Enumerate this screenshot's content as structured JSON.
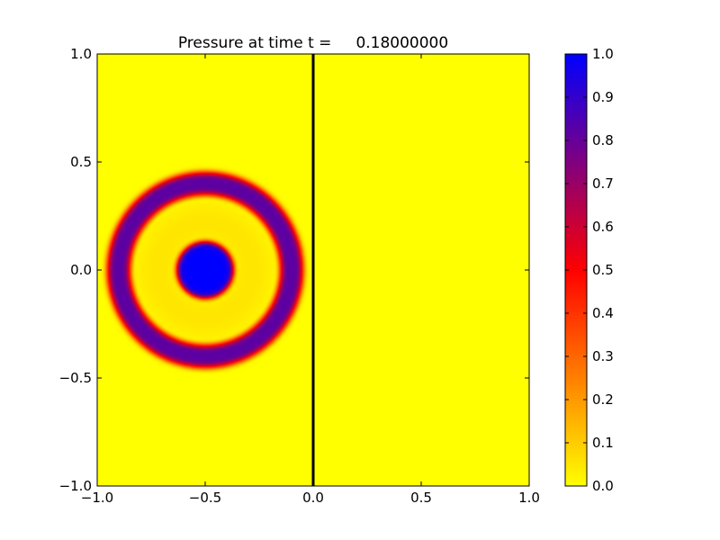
{
  "chart_data": {
    "type": "heatmap",
    "title": "Pressure at time t =     0.18000000",
    "xlabel": "",
    "ylabel": "",
    "xlim": [
      -1.0,
      1.0
    ],
    "ylim": [
      -1.0,
      1.0
    ],
    "x_ticks": [
      -1.0,
      -0.5,
      0.0,
      0.5,
      1.0
    ],
    "x_tick_labels": [
      "−1.0",
      "−0.5",
      "0.0",
      "0.5",
      "1.0"
    ],
    "y_ticks": [
      -1.0,
      -0.5,
      0.0,
      0.5,
      1.0
    ],
    "y_tick_labels": [
      "−1.0",
      "−0.5",
      "0.0",
      "0.5",
      "1.0"
    ],
    "interface_x": 0.0,
    "source_center": [
      -0.5,
      0.0
    ],
    "features": [
      {
        "name": "core",
        "radius": 0.13,
        "value": 1.0
      },
      {
        "name": "expanding-ring",
        "radius": 0.4,
        "width": 0.1,
        "value": 0.82
      },
      {
        "name": "inner-glow",
        "value": 0.05
      }
    ],
    "colorbar": {
      "range": [
        0.0,
        1.0
      ],
      "ticks": [
        0.0,
        0.1,
        0.2,
        0.3,
        0.4,
        0.5,
        0.6,
        0.7,
        0.8,
        0.9,
        1.0
      ],
      "tick_labels": [
        "0.0",
        "0.1",
        "0.2",
        "0.3",
        "0.4",
        "0.5",
        "0.6",
        "0.7",
        "0.8",
        "0.9",
        "1.0"
      ],
      "colors": [
        "#ffff00",
        "#ff0000",
        "#0000ff"
      ]
    },
    "grid": false
  }
}
